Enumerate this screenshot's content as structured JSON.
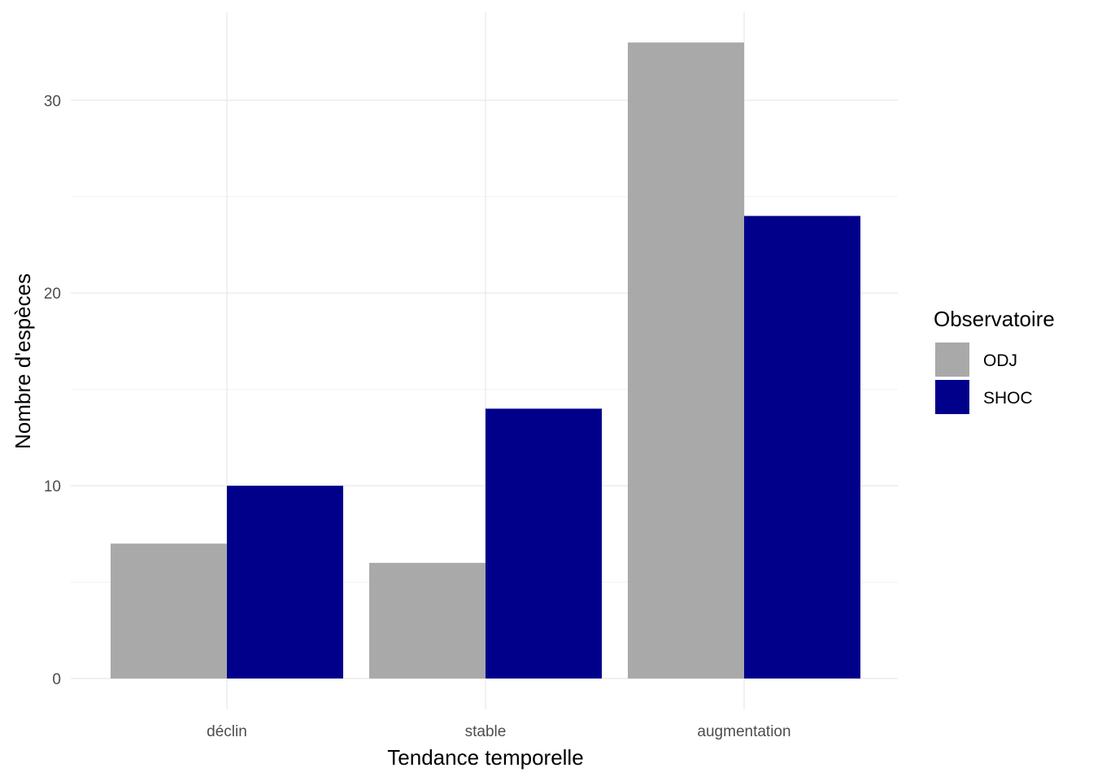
{
  "chart_data": {
    "type": "bar",
    "categories": [
      "déclin",
      "stable",
      "augmentation"
    ],
    "series": [
      {
        "name": "ODJ",
        "color": "#A9A9A9",
        "values": [
          7,
          6,
          33
        ]
      },
      {
        "name": "SHOC",
        "color": "#00008B",
        "values": [
          10,
          14,
          24
        ]
      }
    ],
    "xlabel": "Tendance temporelle",
    "ylabel": "Nombre d'espèces",
    "ylim": [
      0,
      34.65
    ],
    "yticks": [
      0,
      10,
      20,
      30
    ],
    "grid": true,
    "legend": {
      "title": "Observatoire",
      "placement": "right"
    }
  }
}
